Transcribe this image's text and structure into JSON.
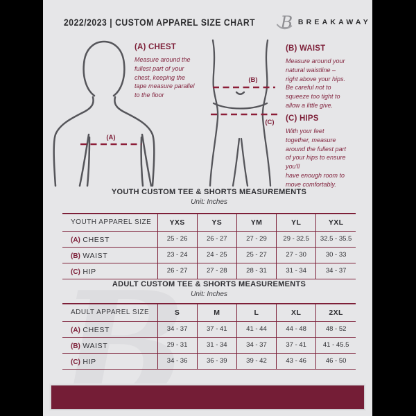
{
  "colors": {
    "accent_maroon": "#7d1f38",
    "page_background": "#e6e6e8",
    "letterbox": "#000000"
  },
  "header": {
    "title": "2022/2023  |  CUSTOM APPAREL SIZE CHART",
    "brand": "BREAKAWAY",
    "logo_icon": "breakaway-b-logo"
  },
  "measurements": [
    {
      "key": "(A) CHEST",
      "description": "Measure around the\nfullest part of your\nchest, keeping the\ntape measure parallel\nto the floor"
    },
    {
      "key": "(B) WAIST",
      "description": "Measure around your\nnatural waistline –\nright above your hips.\nBe careful not to\nsqueeze too tight to\nallow a little give."
    },
    {
      "key": "(C) HIPS",
      "description": "With your feet\ntogether, measure\naround the fullest part\nof your hips to ensure\nyou'll\nhave enough room to\nmove comfortably."
    }
  ],
  "diagram": {
    "labels": {
      "chest": "(A)",
      "waist": "(B)",
      "hips": "(C)"
    }
  },
  "youth_table": {
    "title": "YOUTH CUSTOM TEE & SHORTS MEASUREMENTS",
    "unit": "Unit: Inches",
    "header": [
      "YOUTH APPAREL SIZE",
      "YXS",
      "YS",
      "YM",
      "YL",
      "YXL"
    ],
    "rows": [
      {
        "label_key": "(A)",
        "label": "CHEST",
        "values": [
          "25 - 26",
          "26 - 27",
          "27 - 29",
          "29 - 32.5",
          "32.5 - 35.5"
        ]
      },
      {
        "label_key": "(B)",
        "label": "WAIST",
        "values": [
          "23 - 24",
          "24 - 25",
          "25 - 27",
          "27 - 30",
          "30 - 33"
        ]
      },
      {
        "label_key": "(C)",
        "label": "HIP",
        "values": [
          "26 - 27",
          "27 - 28",
          "28 - 31",
          "31 - 34",
          "34 - 37"
        ]
      }
    ]
  },
  "adult_table": {
    "title": "ADULT CUSTOM TEE & SHORTS MEASUREMENTS",
    "unit": "Unit: Inches",
    "header": [
      "ADULT APPAREL SIZE",
      "S",
      "M",
      "L",
      "XL",
      "2XL"
    ],
    "rows": [
      {
        "label_key": "(A)",
        "label": "CHEST",
        "values": [
          "34 - 37",
          "37 - 41",
          "41 - 44",
          "44 - 48",
          "48 - 52"
        ]
      },
      {
        "label_key": "(B)",
        "label": "WAIST",
        "values": [
          "29 - 31",
          "31 - 34",
          "34 - 37",
          "37 - 41",
          "41 - 45.5"
        ]
      },
      {
        "label_key": "(C)",
        "label": "HIP",
        "values": [
          "34 - 36",
          "36 - 39",
          "39 - 42",
          "43 - 46",
          "46 - 50"
        ]
      }
    ]
  },
  "watermark": "B"
}
